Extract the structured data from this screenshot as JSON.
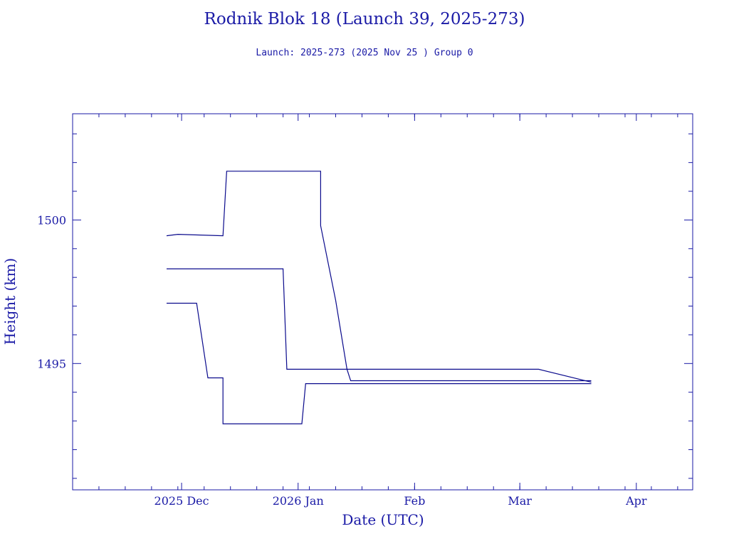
{
  "title": "Rodnik Blok 18 (Launch 39, 2025-273)",
  "subtitle": "Launch: 2025-273  (2025 Nov 25 )  Group 0",
  "chart_data": {
    "type": "line",
    "xlabel": "Date (UTC)",
    "ylabel": "Height (km)",
    "x_tick_labels": [
      "2025 Dec",
      "2026 Jan",
      "Feb",
      "Mar",
      "Apr"
    ],
    "x_tick_dates": [
      "2025-12-01",
      "2026-01-01",
      "2026-02-01",
      "2026-03-01",
      "2026-04-01"
    ],
    "xlim": [
      "2025-11-02",
      "2026-04-16"
    ],
    "y_tick_labels": [
      "1500",
      "1495"
    ],
    "y_tick_values": [
      1500,
      1495
    ],
    "ylim": [
      1490.6,
      1503.7
    ],
    "line_color": "#0a0a8c",
    "series": [
      {
        "x": [
          "2025-11-27",
          "2025-11-30",
          "2025-12-12",
          "2025-12-13",
          "2025-12-22",
          "2026-01-07",
          "2026-01-07",
          "2026-01-11",
          "2026-01-14",
          "2026-01-15",
          "2026-03-06",
          "2026-03-20"
        ],
        "y": [
          1499.45,
          1499.5,
          1499.45,
          1501.7,
          1501.7,
          1501.7,
          1499.8,
          1497.2,
          1494.8,
          1494.8,
          1494.8,
          1494.35
        ]
      },
      {
        "x": [
          "2025-11-27",
          "2025-12-28",
          "2025-12-29",
          "2026-01-14",
          "2026-01-15",
          "2026-02-11",
          "2026-02-12",
          "2026-03-20"
        ],
        "y": [
          1498.3,
          1498.3,
          1494.8,
          1494.8,
          1494.4,
          1494.4,
          1494.4,
          1494.4
        ]
      },
      {
        "x": [
          "2025-11-27",
          "2025-12-05",
          "2025-12-08",
          "2025-12-12",
          "2025-12-12",
          "2025-12-13",
          "2026-01-02",
          "2026-01-03",
          "2026-03-20"
        ],
        "y": [
          1497.1,
          1497.1,
          1494.5,
          1494.5,
          1492.9,
          1492.9,
          1492.9,
          1494.3,
          1494.3
        ]
      }
    ]
  }
}
